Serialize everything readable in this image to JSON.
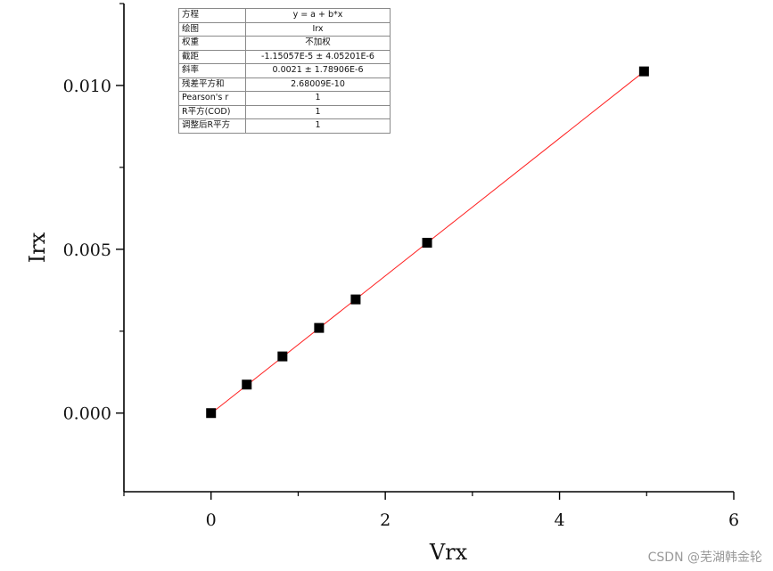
{
  "chart_data": {
    "type": "scatter",
    "xlabel": "Vrx",
    "ylabel": "Irx",
    "xlim": [
      -1,
      6
    ],
    "ylim": [
      -0.0024,
      0.0125
    ],
    "x_ticks": [
      0,
      2,
      4,
      6
    ],
    "x_tick_labels": [
      "0",
      "2",
      "4",
      "6"
    ],
    "y_ticks": [
      0.0,
      0.005,
      0.01
    ],
    "y_tick_labels": [
      "0.000",
      "0.005",
      "0.010"
    ],
    "series": [
      {
        "type": "scatter",
        "marker": "square",
        "color": "#000000",
        "points": [
          {
            "x": 0.0,
            "y": 0.0
          },
          {
            "x": 0.41,
            "y": 0.00087
          },
          {
            "x": 0.82,
            "y": 0.00173
          },
          {
            "x": 1.24,
            "y": 0.0026
          },
          {
            "x": 1.66,
            "y": 0.00347
          },
          {
            "x": 2.48,
            "y": 0.0052
          },
          {
            "x": 4.97,
            "y": 0.01043
          }
        ]
      },
      {
        "type": "line",
        "color": "#ff2020",
        "fit": {
          "intercept": -1.15057e-05,
          "slope": 0.0021
        },
        "x_range": [
          0.0,
          4.97
        ]
      }
    ],
    "grid": false,
    "fit_table": [
      {
        "key": "方程",
        "value": "y = a + b*x"
      },
      {
        "key": "绘图",
        "value": "Irx"
      },
      {
        "key": "权重",
        "value": "不加权"
      },
      {
        "key": "截距",
        "value": "-1.15057E-5 ± 4.05201E-6"
      },
      {
        "key": "斜率",
        "value": "0.0021 ± 1.78906E-6"
      },
      {
        "key": "残差平方和",
        "value": "2.68009E-10"
      },
      {
        "key": "Pearson's r",
        "value": "1"
      },
      {
        "key": "R平方(COD)",
        "value": "1"
      },
      {
        "key": "调整后R平方",
        "value": "1"
      }
    ]
  },
  "watermark": "CSDN @芜湖韩金轮"
}
